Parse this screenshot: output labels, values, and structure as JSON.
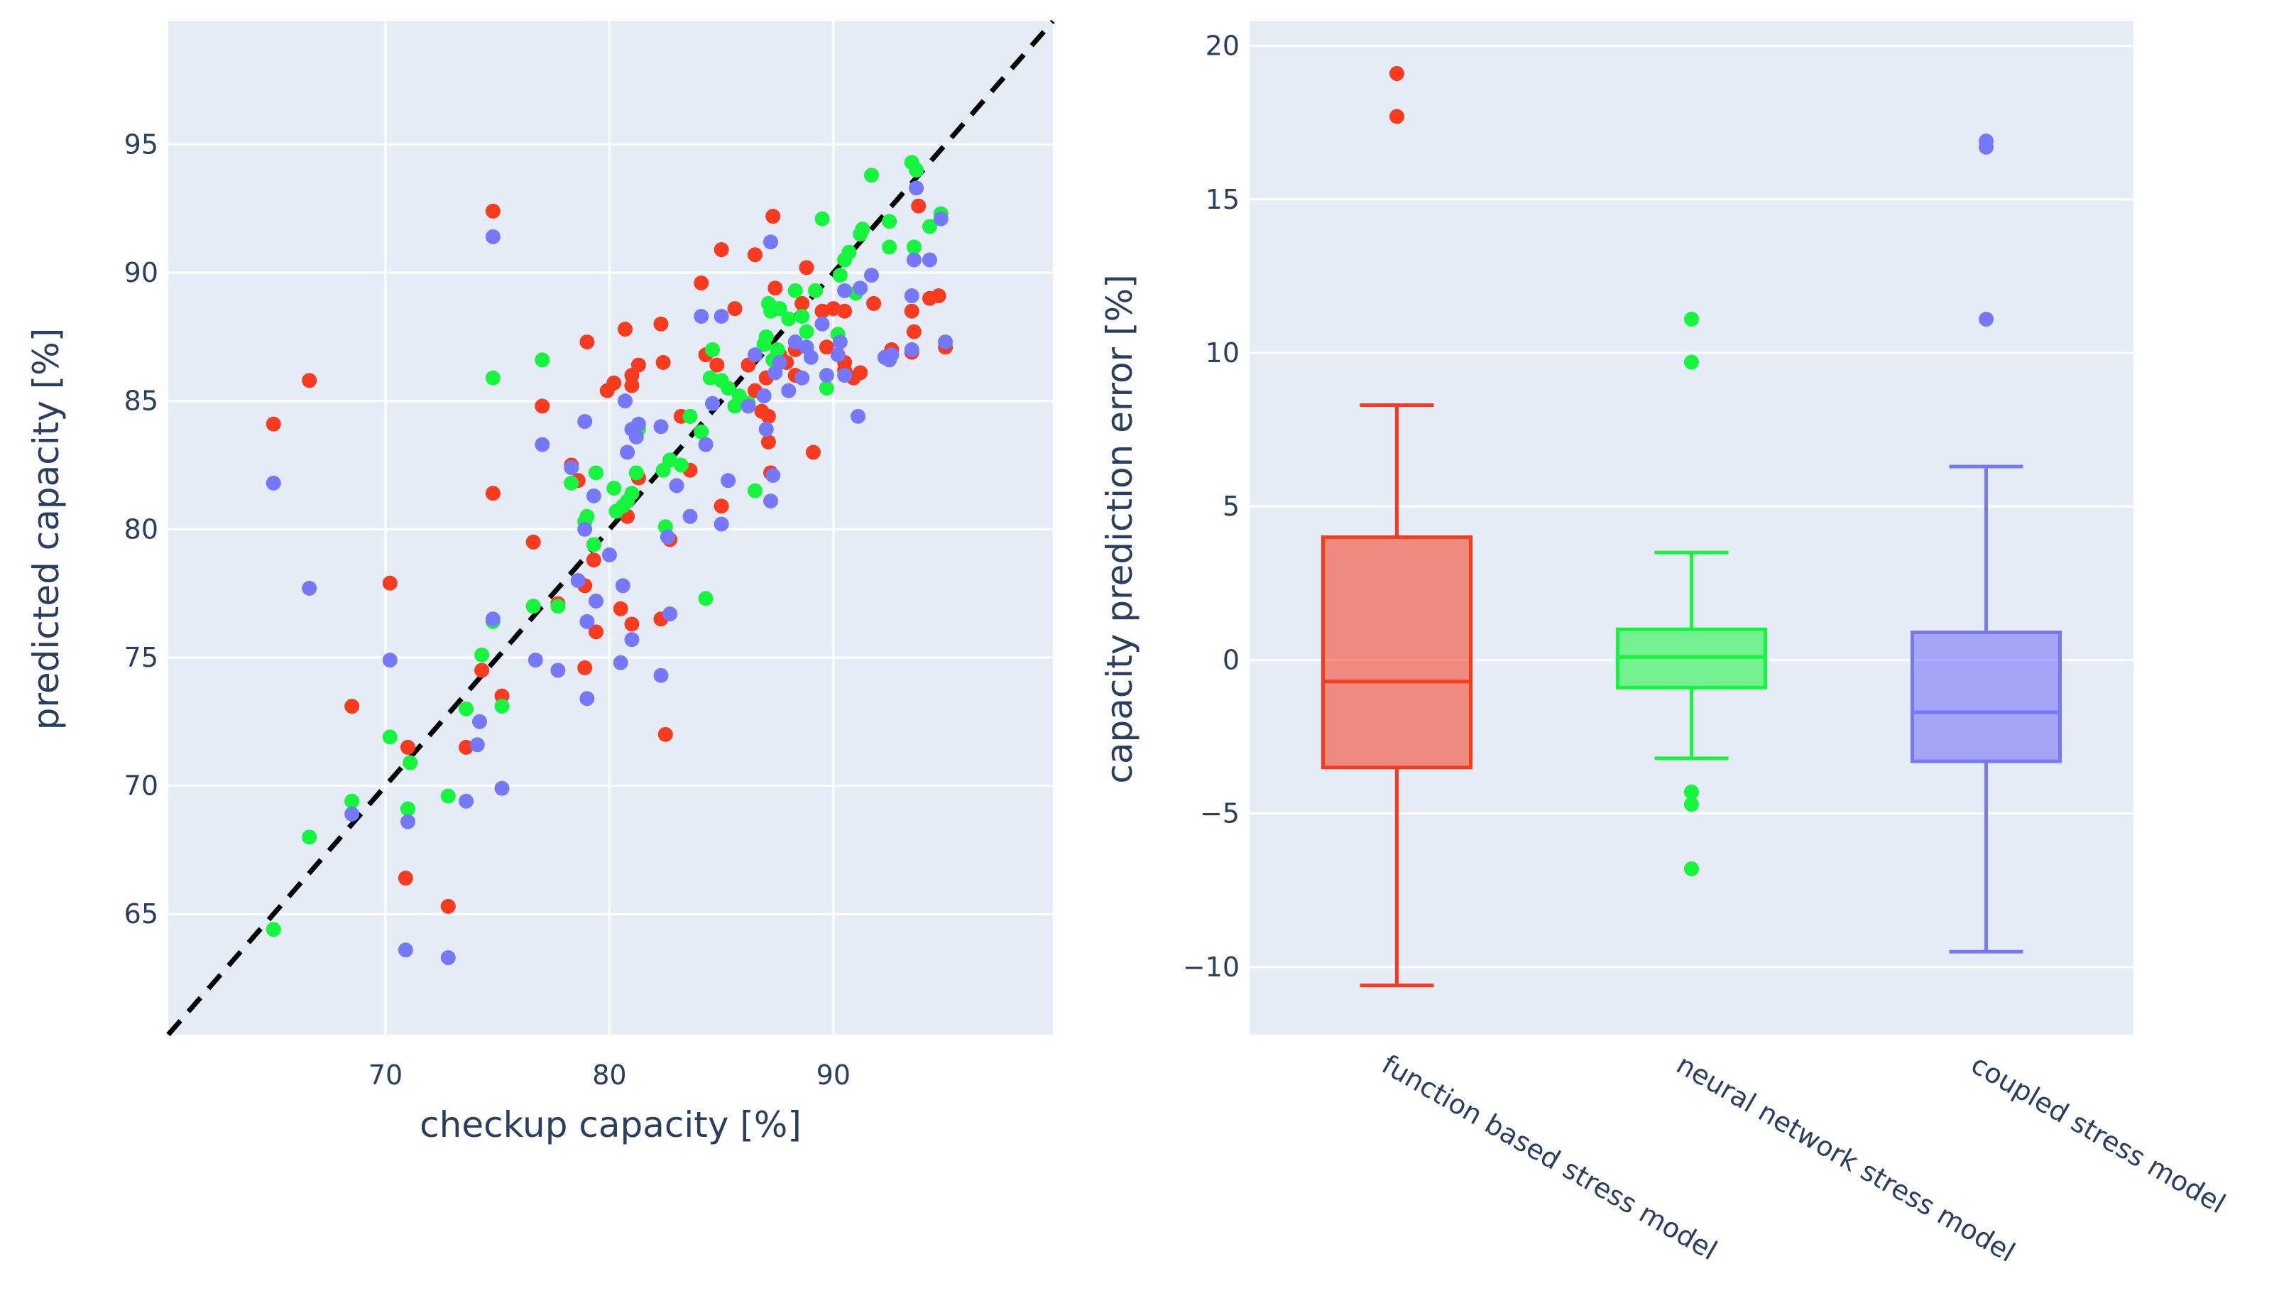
{
  "chart_data": [
    {
      "type": "scatter",
      "xlabel": "checkup capacity [%]",
      "ylabel": "predicted capacity [%]",
      "xlim": [
        60.3,
        99.8
      ],
      "ylim": [
        60.3,
        99.8
      ],
      "xticks": [
        70,
        80,
        90
      ],
      "yticks": [
        65,
        70,
        75,
        80,
        85,
        90,
        95
      ],
      "reference_line": {
        "style": "dashed",
        "color": "#000000",
        "from": [
          60.3,
          60.3
        ],
        "to": [
          99.8,
          99.8
        ]
      },
      "series": [
        {
          "name": "function based stress model",
          "color": "#f83a1e",
          "points": [
            [
              65.0,
              84.1
            ],
            [
              66.6,
              85.8
            ],
            [
              68.5,
              73.1
            ],
            [
              70.2,
              77.9
            ],
            [
              71.0,
              71.5
            ],
            [
              70.9,
              66.4
            ],
            [
              72.8,
              65.3
            ],
            [
              73.6,
              71.5
            ],
            [
              74.3,
              74.5
            ],
            [
              74.8,
              92.4
            ],
            [
              74.8,
              81.4
            ],
            [
              75.2,
              73.5
            ],
            [
              76.6,
              79.5
            ],
            [
              77.0,
              84.8
            ],
            [
              77.7,
              77.1
            ],
            [
              78.3,
              82.5
            ],
            [
              78.6,
              81.9
            ],
            [
              78.9,
              74.6
            ],
            [
              78.9,
              77.8
            ],
            [
              79.0,
              87.3
            ],
            [
              79.3,
              78.8
            ],
            [
              79.4,
              76.0
            ],
            [
              79.9,
              85.4
            ],
            [
              80.2,
              85.7
            ],
            [
              80.5,
              76.9
            ],
            [
              80.7,
              87.8
            ],
            [
              80.8,
              80.5
            ],
            [
              81.0,
              86.0
            ],
            [
              81.0,
              76.3
            ],
            [
              81.0,
              85.6
            ],
            [
              81.3,
              86.4
            ],
            [
              81.3,
              82.0
            ],
            [
              82.3,
              88.0
            ],
            [
              82.3,
              76.5
            ],
            [
              82.4,
              86.5
            ],
            [
              82.5,
              72.0
            ],
            [
              82.7,
              79.6
            ],
            [
              83.2,
              84.4
            ],
            [
              83.6,
              82.3
            ],
            [
              84.1,
              89.6
            ],
            [
              84.3,
              86.8
            ],
            [
              84.8,
              86.4
            ],
            [
              85.0,
              90.9
            ],
            [
              85.0,
              80.9
            ],
            [
              85.6,
              88.6
            ],
            [
              86.2,
              86.4
            ],
            [
              86.5,
              90.7
            ],
            [
              86.5,
              85.4
            ],
            [
              86.9,
              85.2
            ],
            [
              87.0,
              85.9
            ],
            [
              87.1,
              84.4
            ],
            [
              87.1,
              83.4
            ],
            [
              87.2,
              82.2
            ],
            [
              87.3,
              92.2
            ],
            [
              87.4,
              89.4
            ],
            [
              87.6,
              86.8
            ],
            [
              87.9,
              86.5
            ],
            [
              88.3,
              87.0
            ],
            [
              88.3,
              86.0
            ],
            [
              88.8,
              90.2
            ],
            [
              89.1,
              83.0
            ],
            [
              89.5,
              88.5
            ],
            [
              89.7,
              87.1
            ],
            [
              90.0,
              88.6
            ],
            [
              90.5,
              86.2
            ],
            [
              90.5,
              86.5
            ],
            [
              90.5,
              88.5
            ],
            [
              90.9,
              85.9
            ],
            [
              91.2,
              86.1
            ],
            [
              91.8,
              88.8
            ],
            [
              92.6,
              87.0
            ],
            [
              93.5,
              88.5
            ],
            [
              93.6,
              87.7
            ],
            [
              93.8,
              92.6
            ],
            [
              94.3,
              89.0
            ],
            [
              94.7,
              89.1
            ],
            [
              95.0,
              87.1
            ],
            [
              93.5,
              86.9
            ],
            [
              92.3,
              86.7
            ],
            [
              86.8,
              84.6
            ],
            [
              88.6,
              88.8
            ]
          ]
        },
        {
          "name": "neural network stress model",
          "color": "#15f53e",
          "points": [
            [
              65.0,
              64.4
            ],
            [
              66.6,
              68.0
            ],
            [
              68.5,
              69.4
            ],
            [
              70.2,
              71.9
            ],
            [
              71.0,
              69.1
            ],
            [
              71.1,
              70.9
            ],
            [
              72.8,
              69.6
            ],
            [
              73.6,
              73.0
            ],
            [
              74.3,
              75.1
            ],
            [
              74.8,
              76.4
            ],
            [
              74.8,
              85.9
            ],
            [
              75.2,
              73.1
            ],
            [
              76.6,
              77.0
            ],
            [
              77.0,
              86.6
            ],
            [
              77.7,
              77.0
            ],
            [
              78.3,
              81.8
            ],
            [
              78.9,
              80.3
            ],
            [
              79.0,
              80.5
            ],
            [
              79.3,
              79.4
            ],
            [
              79.4,
              82.2
            ],
            [
              80.2,
              81.6
            ],
            [
              80.3,
              80.7
            ],
            [
              80.6,
              80.9
            ],
            [
              80.8,
              81.1
            ],
            [
              81.0,
              81.4
            ],
            [
              81.2,
              82.2
            ],
            [
              81.3,
              83.9
            ],
            [
              82.4,
              82.3
            ],
            [
              82.5,
              80.1
            ],
            [
              82.7,
              82.7
            ],
            [
              83.2,
              82.5
            ],
            [
              83.6,
              84.4
            ],
            [
              84.1,
              83.8
            ],
            [
              84.3,
              77.3
            ],
            [
              84.6,
              87.0
            ],
            [
              85.0,
              85.8
            ],
            [
              85.3,
              85.5
            ],
            [
              85.6,
              84.8
            ],
            [
              86.2,
              84.9
            ],
            [
              86.5,
              81.5
            ],
            [
              86.9,
              87.2
            ],
            [
              87.0,
              87.5
            ],
            [
              87.1,
              88.8
            ],
            [
              87.2,
              88.5
            ],
            [
              87.3,
              86.6
            ],
            [
              87.4,
              88.6
            ],
            [
              87.6,
              88.6
            ],
            [
              88.0,
              88.2
            ],
            [
              88.3,
              89.3
            ],
            [
              88.6,
              88.3
            ],
            [
              88.8,
              87.7
            ],
            [
              89.2,
              89.3
            ],
            [
              89.5,
              92.1
            ],
            [
              89.7,
              85.5
            ],
            [
              90.2,
              87.6
            ],
            [
              90.5,
              90.5
            ],
            [
              90.7,
              90.8
            ],
            [
              91.2,
              91.5
            ],
            [
              91.3,
              91.7
            ],
            [
              91.7,
              93.8
            ],
            [
              92.5,
              92.0
            ],
            [
              92.5,
              91.0
            ],
            [
              93.5,
              94.3
            ],
            [
              93.7,
              94.0
            ],
            [
              93.6,
              91.0
            ],
            [
              94.3,
              91.8
            ],
            [
              94.8,
              92.3
            ],
            [
              90.3,
              89.9
            ],
            [
              91.0,
              89.2
            ],
            [
              87.5,
              87.0
            ],
            [
              84.5,
              85.9
            ],
            [
              85.8,
              85.2
            ]
          ]
        },
        {
          "name": "coupled stress model",
          "color": "#7678fa",
          "points": [
            [
              65.0,
              81.8
            ],
            [
              66.6,
              77.7
            ],
            [
              68.5,
              68.9
            ],
            [
              70.2,
              74.9
            ],
            [
              71.0,
              68.6
            ],
            [
              70.9,
              63.6
            ],
            [
              72.8,
              63.3
            ],
            [
              73.6,
              69.4
            ],
            [
              74.1,
              71.6
            ],
            [
              74.2,
              72.5
            ],
            [
              74.8,
              91.4
            ],
            [
              74.8,
              76.5
            ],
            [
              75.2,
              69.9
            ],
            [
              76.7,
              74.9
            ],
            [
              77.0,
              83.3
            ],
            [
              77.7,
              74.5
            ],
            [
              78.3,
              82.4
            ],
            [
              78.6,
              78.0
            ],
            [
              78.9,
              84.2
            ],
            [
              78.9,
              80.0
            ],
            [
              79.0,
              73.4
            ],
            [
              79.0,
              76.4
            ],
            [
              79.3,
              81.3
            ],
            [
              79.4,
              77.2
            ],
            [
              80.0,
              79.0
            ],
            [
              80.5,
              74.8
            ],
            [
              80.6,
              77.8
            ],
            [
              80.7,
              85.0
            ],
            [
              80.8,
              83.0
            ],
            [
              81.0,
              75.7
            ],
            [
              81.0,
              83.9
            ],
            [
              81.2,
              83.6
            ],
            [
              81.3,
              84.1
            ],
            [
              82.3,
              84.0
            ],
            [
              82.3,
              74.3
            ],
            [
              82.6,
              79.7
            ],
            [
              82.7,
              76.7
            ],
            [
              83.0,
              81.7
            ],
            [
              83.6,
              80.5
            ],
            [
              84.1,
              88.3
            ],
            [
              84.3,
              83.3
            ],
            [
              84.6,
              84.9
            ],
            [
              85.0,
              88.3
            ],
            [
              85.0,
              80.2
            ],
            [
              85.3,
              81.9
            ],
            [
              86.2,
              84.8
            ],
            [
              86.5,
              86.8
            ],
            [
              86.9,
              85.2
            ],
            [
              87.0,
              83.9
            ],
            [
              87.2,
              91.2
            ],
            [
              87.2,
              81.1
            ],
            [
              87.3,
              82.1
            ],
            [
              87.4,
              86.1
            ],
            [
              87.6,
              86.5
            ],
            [
              88.0,
              85.4
            ],
            [
              88.3,
              87.3
            ],
            [
              88.6,
              85.9
            ],
            [
              88.8,
              87.1
            ],
            [
              89.5,
              88.0
            ],
            [
              89.7,
              86.0
            ],
            [
              90.2,
              86.8
            ],
            [
              90.3,
              87.3
            ],
            [
              90.5,
              89.3
            ],
            [
              90.5,
              86.0
            ],
            [
              91.1,
              84.4
            ],
            [
              91.2,
              89.4
            ],
            [
              91.7,
              89.9
            ],
            [
              92.3,
              86.7
            ],
            [
              92.6,
              86.8
            ],
            [
              93.5,
              87.0
            ],
            [
              93.6,
              90.5
            ],
            [
              93.7,
              93.3
            ],
            [
              94.3,
              90.5
            ],
            [
              94.8,
              92.1
            ],
            [
              95.0,
              87.3
            ],
            [
              93.5,
              89.1
            ],
            [
              92.5,
              86.6
            ],
            [
              89.0,
              86.7
            ]
          ]
        }
      ]
    },
    {
      "type": "box",
      "xlabel": "",
      "ylabel": "capacity prediction error [%]",
      "ylim": [
        -12.2,
        20.8
      ],
      "yticks": [
        -10,
        -5,
        0,
        5,
        10,
        15,
        20
      ],
      "ytick_labels": [
        "−10",
        "−5",
        "0",
        "5",
        "10",
        "15",
        "20"
      ],
      "boxes": [
        {
          "name": "function based stress model",
          "color": "#f83a1e",
          "fill": "rgba(248,58,30,0.55)",
          "whisker_low": -10.6,
          "q1": -3.5,
          "median": -0.7,
          "q3": 4.0,
          "whisker_high": 8.3,
          "outliers": [
            19.1,
            17.7
          ]
        },
        {
          "name": "neural network stress model",
          "color": "#15f53e",
          "fill": "rgba(21,245,62,0.55)",
          "whisker_low": -3.2,
          "q1": -0.9,
          "median": 0.1,
          "q3": 1.0,
          "whisker_high": 3.5,
          "outliers": [
            11.1,
            9.7,
            -4.3,
            -4.7,
            -6.8
          ]
        },
        {
          "name": "coupled stress model",
          "color": "#7678fa",
          "fill": "rgba(118,120,250,0.6)",
          "whisker_low": -9.5,
          "q1": -3.3,
          "median": -1.7,
          "q3": 0.9,
          "whisker_high": 6.3,
          "outliers": [
            16.9,
            16.7,
            11.1
          ]
        }
      ]
    }
  ]
}
